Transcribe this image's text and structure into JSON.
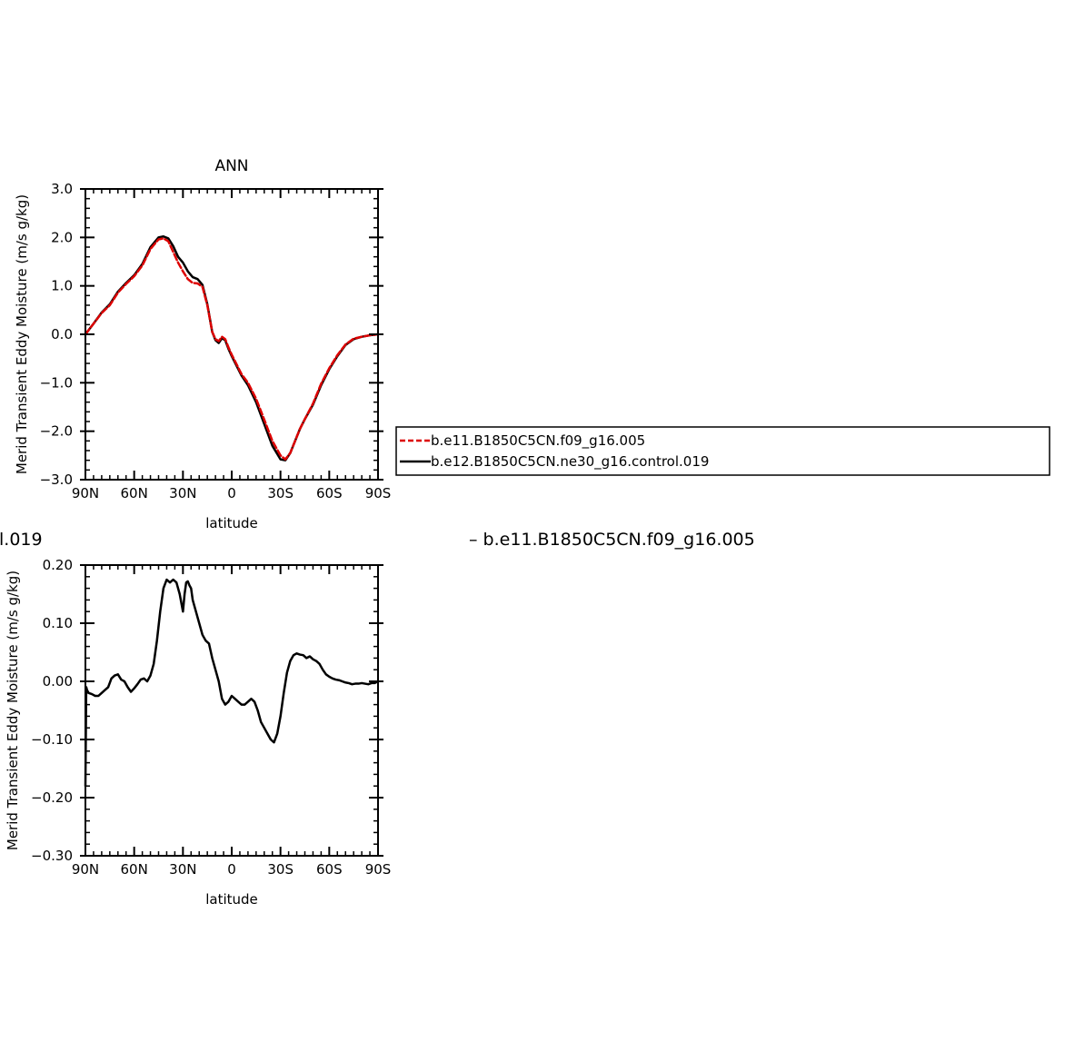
{
  "colors": {
    "case": "#dd0000",
    "control": "#000000",
    "frame": "#000000"
  },
  "legend": {
    "entries": [
      {
        "label": "b.e11.B1850C5CN.f09_g16.005",
        "color": "#dd0000",
        "style": "dashed"
      },
      {
        "label": "b.e12.B1850C5CN.ne30_g16.control.019",
        "color": "#000000",
        "style": "solid"
      }
    ]
  },
  "diff_caption": {
    "left": "l.019",
    "right": "– b.e11.B1850C5CN.f09_g16.005"
  },
  "chart_data": [
    {
      "type": "line",
      "title": "ANN",
      "xlabel": "latitude",
      "ylabel": "Merid Transient Eddy Moisture (m/s g/kg)",
      "xlim": [
        90,
        -90
      ],
      "ylim": [
        -3.0,
        3.0
      ],
      "xticks": [
        90,
        60,
        30,
        0,
        -30,
        -60,
        -90
      ],
      "xtick_labels": [
        "90N",
        "60N",
        "30N",
        "0",
        "30S",
        "60S",
        "90S"
      ],
      "yticks": [
        3.0,
        2.0,
        1.0,
        0.0,
        -1.0,
        -2.0,
        -3.0
      ],
      "ytick_labels": [
        "3.0",
        "2.0",
        "1.0",
        "0.0",
        "−1.0",
        "−2.0",
        "−3.0"
      ],
      "series": [
        {
          "name": "b.e12.B1850C5CN.ne30_g16.control.019",
          "x": [
            90,
            85,
            80,
            75,
            70,
            65,
            60,
            55,
            50,
            45,
            42,
            39,
            36,
            33,
            30,
            27,
            24,
            21,
            18,
            15,
            12,
            10,
            8,
            6,
            4,
            2,
            0,
            -3,
            -6,
            -10,
            -15,
            -20,
            -25,
            -30,
            -33,
            -36,
            -39,
            -42,
            -45,
            -50,
            -55,
            -60,
            -65,
            -70,
            -75,
            -80,
            -85,
            -90
          ],
          "y": [
            0.0,
            0.22,
            0.45,
            0.62,
            0.88,
            1.06,
            1.22,
            1.45,
            1.8,
            2.0,
            2.02,
            1.98,
            1.82,
            1.6,
            1.48,
            1.3,
            1.18,
            1.14,
            1.02,
            0.62,
            0.05,
            -0.12,
            -0.18,
            -0.08,
            -0.12,
            -0.3,
            -0.45,
            -0.65,
            -0.85,
            -1.05,
            -1.4,
            -1.85,
            -2.3,
            -2.58,
            -2.6,
            -2.45,
            -2.2,
            -1.95,
            -1.75,
            -1.45,
            -1.05,
            -0.72,
            -0.45,
            -0.22,
            -0.1,
            -0.05,
            -0.02,
            0.0
          ]
        },
        {
          "name": "b.e11.B1850C5CN.f09_g16.005",
          "x": [
            90,
            85,
            80,
            75,
            70,
            65,
            60,
            55,
            50,
            45,
            42,
            39,
            36,
            33,
            30,
            27,
            24,
            21,
            18,
            15,
            12,
            10,
            8,
            6,
            4,
            2,
            0,
            -3,
            -6,
            -10,
            -15,
            -20,
            -25,
            -30,
            -33,
            -36,
            -39,
            -42,
            -45,
            -50,
            -55,
            -60,
            -65,
            -70,
            -75,
            -80,
            -85,
            -90
          ],
          "y": [
            0.0,
            0.22,
            0.44,
            0.6,
            0.86,
            1.04,
            1.2,
            1.42,
            1.76,
            1.96,
            1.98,
            1.92,
            1.7,
            1.48,
            1.3,
            1.14,
            1.06,
            1.05,
            0.98,
            0.6,
            0.05,
            -0.1,
            -0.14,
            -0.05,
            -0.1,
            -0.27,
            -0.42,
            -0.62,
            -0.82,
            -1.0,
            -1.33,
            -1.76,
            -2.2,
            -2.5,
            -2.58,
            -2.45,
            -2.2,
            -1.95,
            -1.75,
            -1.43,
            -1.02,
            -0.7,
            -0.43,
            -0.21,
            -0.09,
            -0.05,
            -0.02,
            0.0
          ]
        }
      ]
    },
    {
      "type": "line",
      "title": "",
      "xlabel": "latitude",
      "ylabel": "Merid Transient Eddy Moisture (m/s g/kg)",
      "xlim": [
        90,
        -90
      ],
      "ylim": [
        -0.3,
        0.2
      ],
      "xticks": [
        90,
        60,
        30,
        0,
        -30,
        -60,
        -90
      ],
      "xtick_labels": [
        "90N",
        "60N",
        "30N",
        "0",
        "30S",
        "60S",
        "90S"
      ],
      "yticks": [
        0.2,
        0.1,
        0.0,
        -0.1,
        -0.2,
        -0.3
      ],
      "ytick_labels": [
        "0.20",
        "0.10",
        "0.00",
        "−0.10",
        "−0.20",
        "−0.30"
      ],
      "series": [
        {
          "name": "",
          "x": [
            90,
            89.5,
            89,
            88,
            86,
            84,
            82,
            80,
            78,
            76,
            74,
            72,
            70,
            68,
            66,
            64,
            62,
            60,
            58,
            56,
            54,
            52,
            50,
            48,
            46,
            44,
            42,
            40,
            38,
            36,
            34,
            32,
            30,
            29,
            28,
            27,
            26,
            25,
            24,
            22,
            20,
            18,
            16,
            14,
            12,
            10,
            8,
            6,
            4,
            2,
            0,
            -2,
            -4,
            -6,
            -8,
            -10,
            -12,
            -14,
            -16,
            -18,
            -20,
            -22,
            -24,
            -26,
            -28,
            -30,
            -32,
            -34,
            -36,
            -38,
            -40,
            -42,
            -44,
            -46,
            -48,
            -50,
            -52,
            -54,
            -56,
            -58,
            -60,
            -62,
            -64,
            -66,
            -68,
            -70,
            -72,
            -74,
            -76,
            -78,
            -80,
            -82,
            -84,
            -86,
            -88,
            -90
          ],
          "y": [
            -0.18,
            -0.01,
            -0.015,
            -0.02,
            -0.022,
            -0.025,
            -0.025,
            -0.02,
            -0.015,
            -0.01,
            0.005,
            0.01,
            0.012,
            0.003,
            0.0,
            -0.01,
            -0.018,
            -0.012,
            -0.005,
            0.003,
            0.005,
            0.0,
            0.01,
            0.03,
            0.07,
            0.12,
            0.16,
            0.175,
            0.17,
            0.175,
            0.17,
            0.15,
            0.12,
            0.15,
            0.17,
            0.172,
            0.165,
            0.16,
            0.14,
            0.12,
            0.1,
            0.08,
            0.07,
            0.065,
            0.04,
            0.02,
            0.0,
            -0.03,
            -0.04,
            -0.035,
            -0.025,
            -0.03,
            -0.035,
            -0.04,
            -0.04,
            -0.035,
            -0.03,
            -0.035,
            -0.05,
            -0.07,
            -0.08,
            -0.09,
            -0.1,
            -0.105,
            -0.09,
            -0.06,
            -0.02,
            0.015,
            0.035,
            0.045,
            0.048,
            0.046,
            0.045,
            0.04,
            0.043,
            0.038,
            0.035,
            0.03,
            0.02,
            0.012,
            0.008,
            0.005,
            0.003,
            0.002,
            0.0,
            -0.002,
            -0.003,
            -0.005,
            -0.004,
            -0.004,
            -0.003,
            -0.004,
            -0.005,
            -0.003,
            -0.003,
            0.0
          ]
        }
      ]
    }
  ]
}
